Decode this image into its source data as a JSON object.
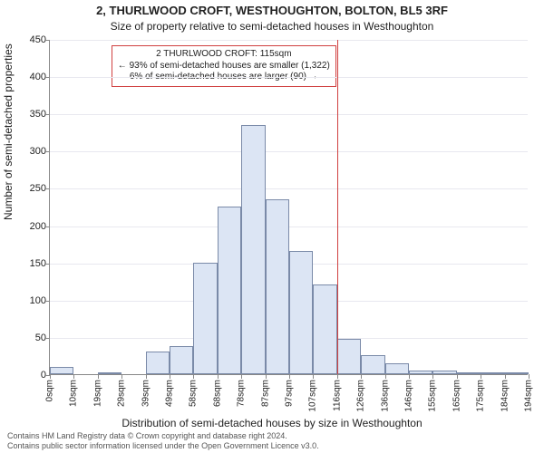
{
  "title": "2, THURLWOOD CROFT, WESTHOUGHTON, BOLTON, BL5 3RF",
  "subtitle": "Size of property relative to semi-detached houses in Westhoughton",
  "ylabel": "Number of semi-detached properties",
  "xlabel": "Distribution of semi-detached houses by size in Westhoughton",
  "footer_line1": "Contains HM Land Registry data © Crown copyright and database right 2024.",
  "footer_line2": "Contains public sector information licensed under the Open Government Licence v3.0.",
  "chart": {
    "type": "histogram",
    "background_color": "#ffffff",
    "grid_color": "#e8e8ef",
    "axis_color": "#888888",
    "bar_fill": "#dce5f4",
    "bar_border": "#7a8aa8",
    "marker_color": "#d04040",
    "ylim": [
      0,
      450
    ],
    "ytick_step": 50,
    "yticks": [
      0,
      50,
      100,
      150,
      200,
      250,
      300,
      350,
      400,
      450
    ],
    "xticks_labels": [
      "0sqm",
      "10sqm",
      "19sqm",
      "29sqm",
      "39sqm",
      "49sqm",
      "58sqm",
      "68sqm",
      "78sqm",
      "87sqm",
      "97sqm",
      "107sqm",
      "116sqm",
      "126sqm",
      "136sqm",
      "146sqm",
      "155sqm",
      "165sqm",
      "175sqm",
      "184sqm",
      "194sqm"
    ],
    "bar_values": [
      10,
      0,
      3,
      0,
      30,
      38,
      150,
      225,
      335,
      235,
      165,
      120,
      47,
      25,
      15,
      5,
      5,
      3,
      2,
      2
    ],
    "marker_bin_index": 12,
    "callout": {
      "line1": "2 THURLWOOD CROFT: 115sqm",
      "line2": "← 93% of semi-detached houses are smaller (1,322)",
      "line3": "6% of semi-detached houses are larger (90) →"
    },
    "title_fontsize": 13,
    "subtitle_fontsize": 12,
    "label_fontsize": 12,
    "tick_fontsize": 11,
    "xtick_fontsize": 10,
    "callout_fontsize": 10,
    "footer_fontsize": 9,
    "bar_width_ratio": 1.0
  }
}
